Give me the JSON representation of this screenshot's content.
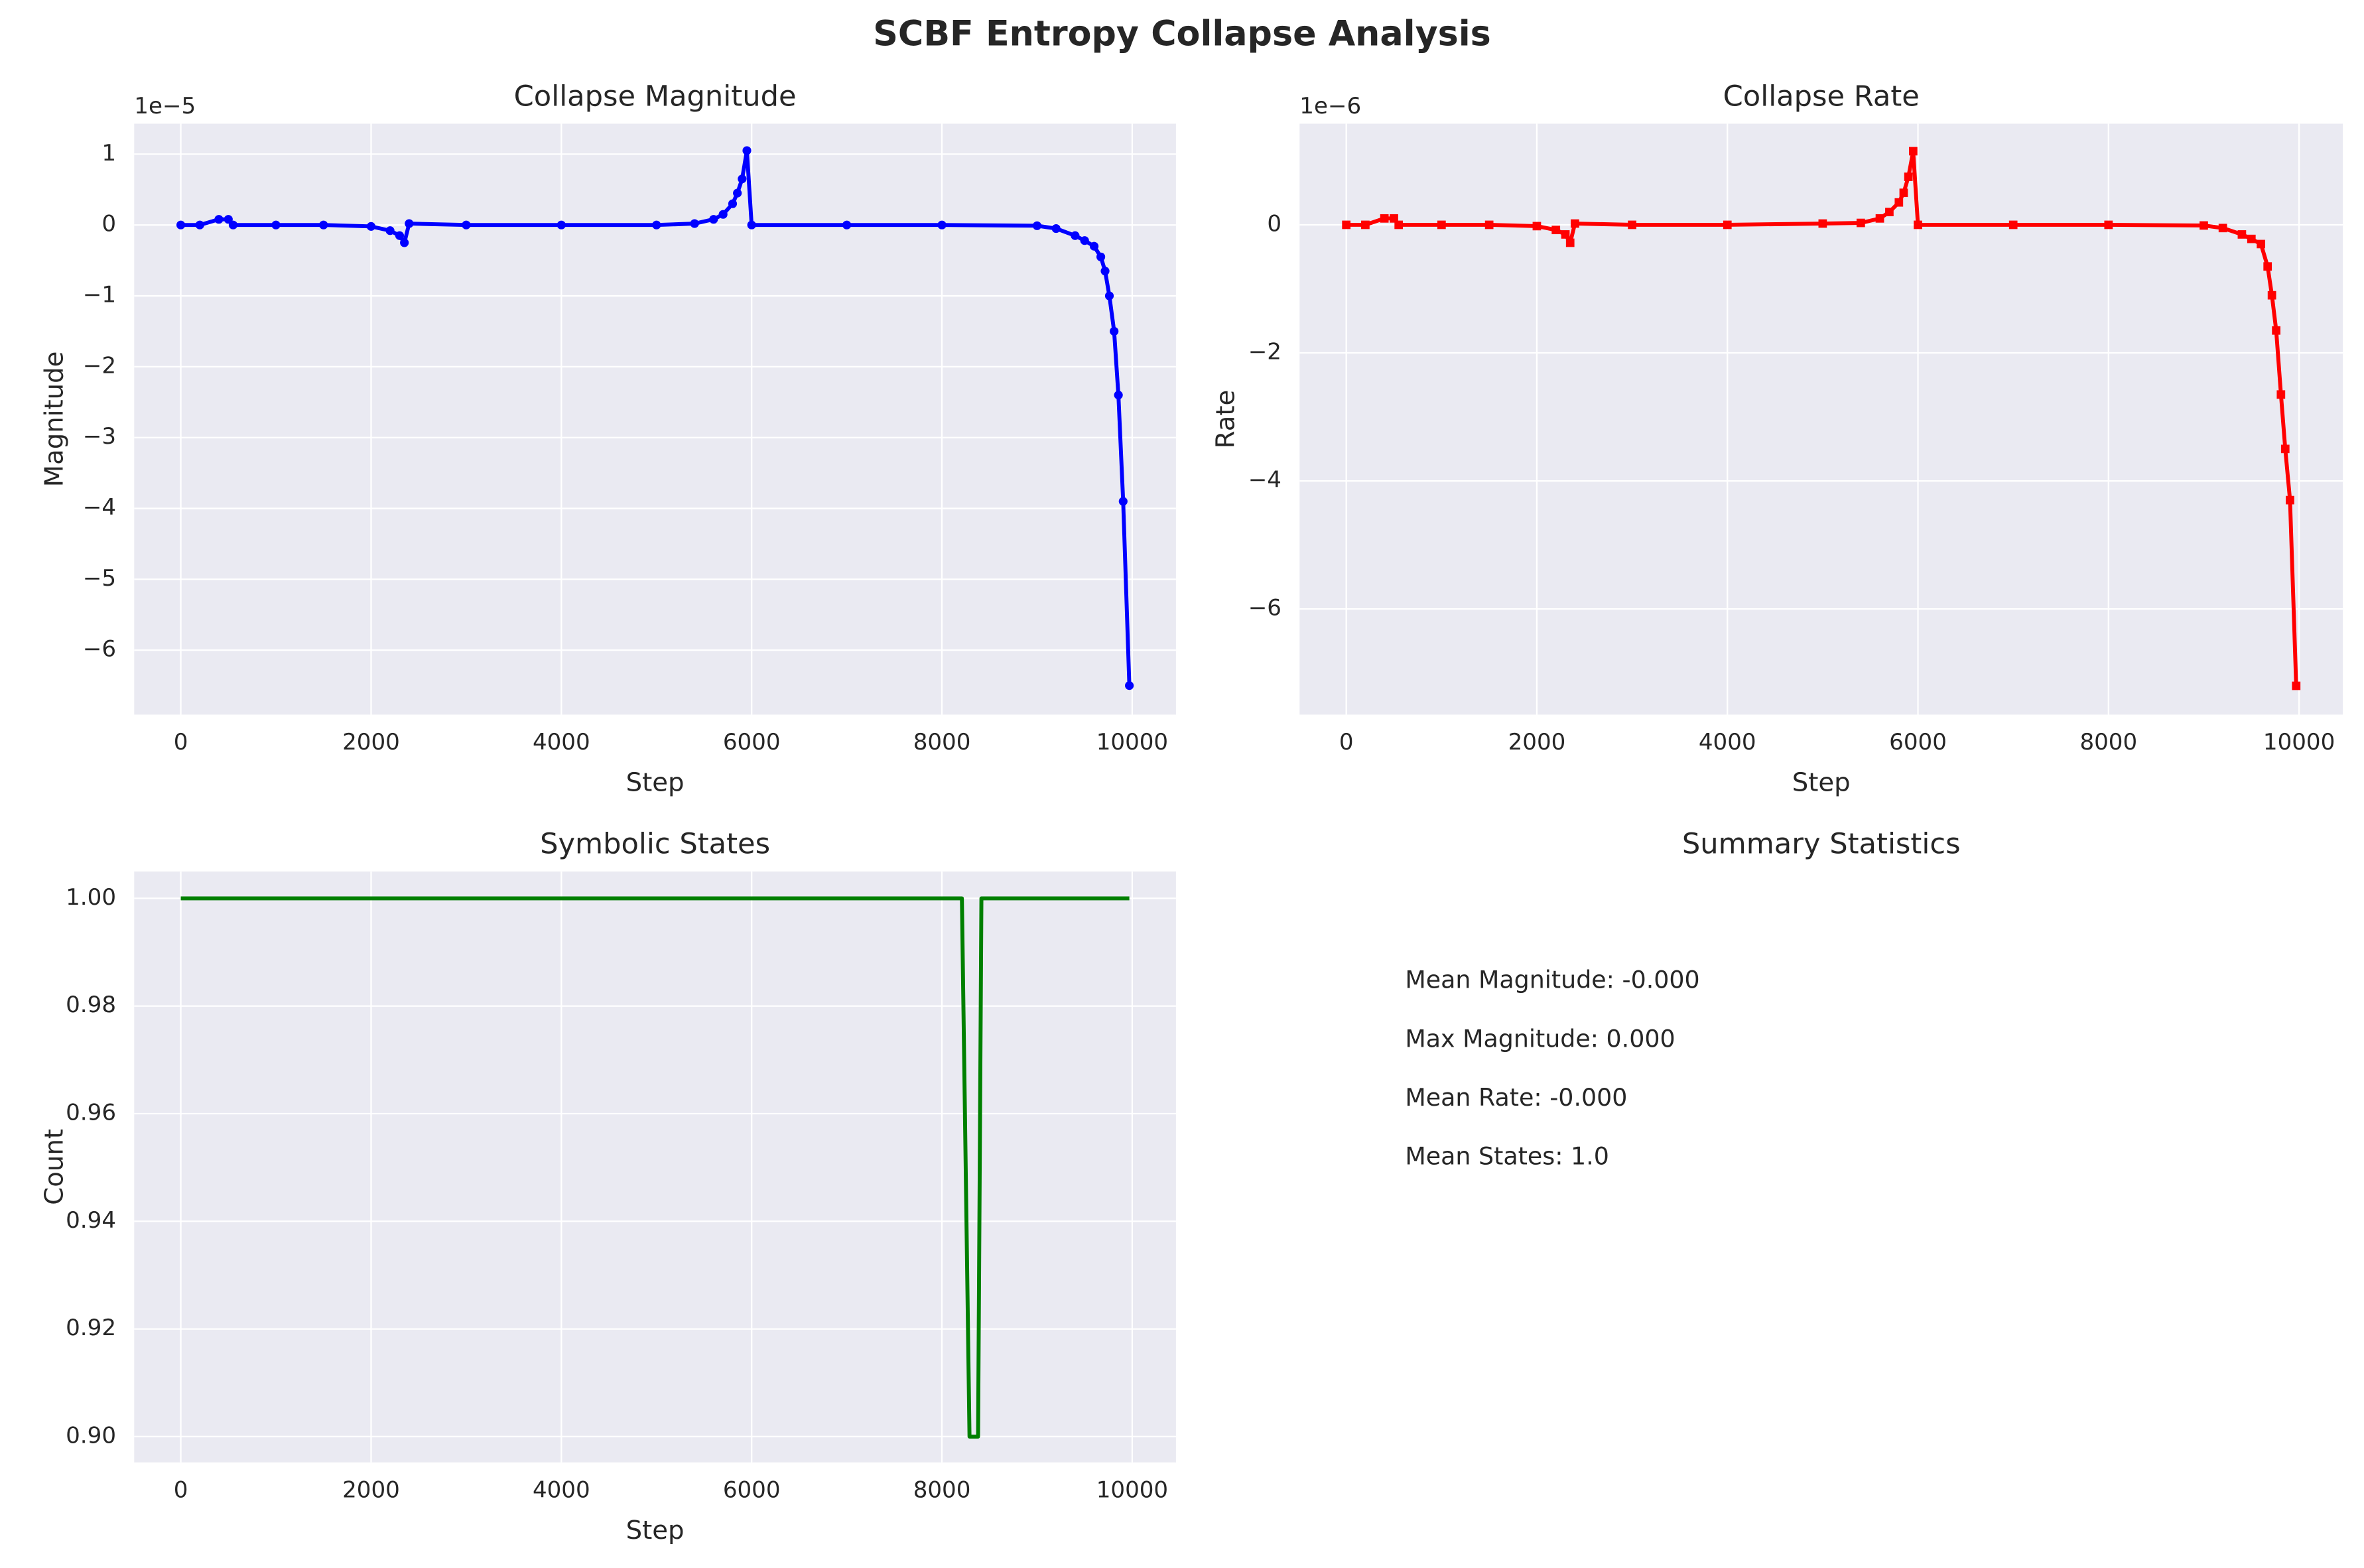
{
  "title": "SCBF Entropy Collapse Analysis",
  "chart_data": [
    {
      "type": "line",
      "title": "Collapse Magnitude",
      "xlabel": "Step",
      "ylabel": "Magnitude",
      "y_offset_label": "1e−5",
      "grid": true,
      "x": [
        0,
        200,
        400,
        500,
        550,
        1000,
        1500,
        2000,
        2200,
        2300,
        2350,
        2400,
        3000,
        4000,
        5000,
        5400,
        5600,
        5700,
        5800,
        5850,
        5900,
        5950,
        6000,
        7000,
        8000,
        9000,
        9200,
        9400,
        9500,
        9600,
        9670,
        9715,
        9760,
        9810,
        9855,
        9905,
        9970
      ],
      "series": [
        {
          "color": "#0000ff",
          "marker": "circle",
          "values": [
            0,
            0,
            0.08,
            0.08,
            0,
            0,
            0,
            -0.02,
            -0.08,
            -0.15,
            -0.25,
            0.02,
            0,
            0,
            0,
            0.02,
            0.08,
            0.15,
            0.3,
            0.45,
            0.65,
            1.05,
            0,
            0,
            0,
            -0.01,
            -0.05,
            -0.15,
            -0.22,
            -0.3,
            -0.45,
            -0.65,
            -1.0,
            -1.5,
            -2.4,
            -3.9,
            -6.5
          ]
        }
      ],
      "xlim": [
        -490,
        10460
      ],
      "xticks": [
        0,
        2000,
        4000,
        6000,
        8000,
        10000
      ],
      "ylim": [
        -6.91,
        1.43
      ],
      "yticks": [
        {
          "value": -6,
          "label": "−6"
        },
        {
          "value": -5,
          "label": "−5"
        },
        {
          "value": -4,
          "label": "−4"
        },
        {
          "value": -3,
          "label": "−3"
        },
        {
          "value": -2,
          "label": "−2"
        },
        {
          "value": -1,
          "label": "−1"
        },
        0,
        1
      ]
    },
    {
      "type": "line",
      "title": "Collapse Rate",
      "xlabel": "Step",
      "ylabel": "Rate",
      "y_offset_label": "1e−6",
      "grid": true,
      "x": [
        0,
        200,
        400,
        500,
        550,
        1000,
        1500,
        2000,
        2200,
        2300,
        2350,
        2400,
        3000,
        4000,
        5000,
        5400,
        5600,
        5700,
        5800,
        5850,
        5900,
        5950,
        6000,
        7000,
        8000,
        9000,
        9200,
        9400,
        9500,
        9600,
        9670,
        9715,
        9760,
        9810,
        9855,
        9905,
        9970
      ],
      "series": [
        {
          "color": "#ff0000",
          "marker": "square",
          "values": [
            0,
            0,
            0.1,
            0.1,
            0,
            0,
            0,
            -0.02,
            -0.08,
            -0.15,
            -0.28,
            0.02,
            0,
            0,
            0.02,
            0.03,
            0.1,
            0.2,
            0.35,
            0.5,
            0.75,
            1.15,
            0,
            0,
            0,
            -0.01,
            -0.05,
            -0.15,
            -0.22,
            -0.3,
            -0.65,
            -1.1,
            -1.65,
            -2.65,
            -3.5,
            -4.3,
            -7.2
          ]
        }
      ],
      "xlim": [
        -490,
        10460
      ],
      "xticks": [
        0,
        2000,
        4000,
        6000,
        8000,
        10000
      ],
      "ylim": [
        -7.65,
        1.58
      ],
      "yticks": [
        {
          "value": -6,
          "label": "−6"
        },
        {
          "value": -4,
          "label": "−4"
        },
        {
          "value": -2,
          "label": "−2"
        },
        0
      ]
    },
    {
      "type": "line",
      "title": "Symbolic States",
      "xlabel": "Step",
      "ylabel": "Count",
      "grid": true,
      "x": [
        0,
        8210,
        8290,
        8380,
        8415,
        9970
      ],
      "series": [
        {
          "color": "#008000",
          "marker": null,
          "values": [
            1,
            1,
            0.9,
            0.9,
            1,
            1
          ]
        }
      ],
      "xlim": [
        -490,
        10460
      ],
      "xticks": [
        0,
        2000,
        4000,
        6000,
        8000,
        10000
      ],
      "ylim": [
        0.8952,
        1.005
      ],
      "yticks": [
        {
          "value": 0.9,
          "label": "0.90"
        },
        {
          "value": 0.92,
          "label": "0.92"
        },
        {
          "value": 0.94,
          "label": "0.94"
        },
        {
          "value": 0.96,
          "label": "0.96"
        },
        {
          "value": 0.98,
          "label": "0.98"
        },
        {
          "value": 1.0,
          "label": "1.00"
        }
      ]
    },
    {
      "type": "text",
      "title": "Summary Statistics",
      "lines": [
        "Mean Magnitude: -0.000",
        "Max Magnitude: 0.000",
        "Mean Rate: -0.000",
        "Mean States: 1.0"
      ]
    }
  ]
}
